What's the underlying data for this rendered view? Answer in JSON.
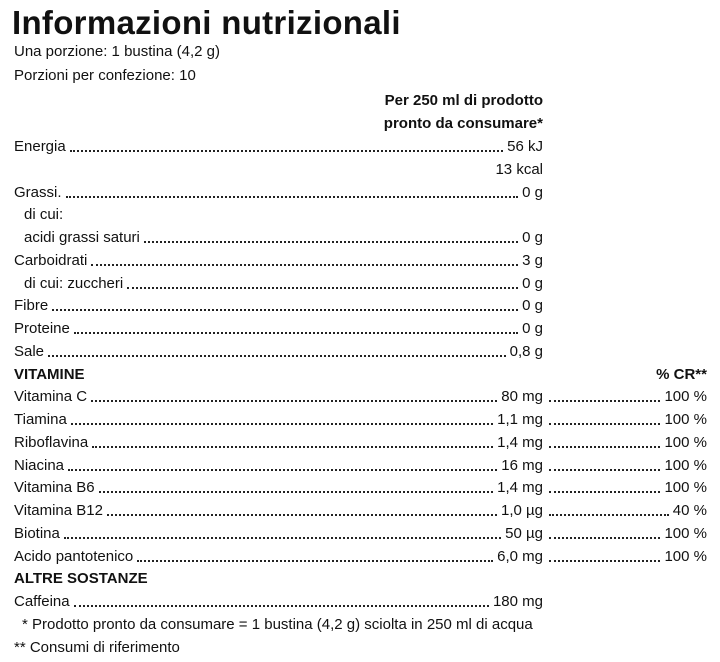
{
  "title": "Informazioni nutrizionali",
  "serving": [
    "Una porzione: 1 bustina (4,2 g)",
    "Porzioni per confezione: 10"
  ],
  "column_header": [
    "Per 250 ml di prodotto",
    "pronto da consumare*"
  ],
  "nutrients": [
    {
      "label": "Energia",
      "amounts": [
        "56 kJ",
        "13 kcal"
      ]
    },
    {
      "label": "Grassi.",
      "amounts": [
        "0 g"
      ]
    },
    {
      "label": "di cui:",
      "amounts": [],
      "indent": true
    },
    {
      "label": "acidi grassi saturi",
      "amounts": [
        "0 g"
      ],
      "indent": true
    },
    {
      "label": "Carboidrati",
      "amounts": [
        "3 g"
      ]
    },
    {
      "label": "di cui: zuccheri",
      "amounts": [
        "0 g"
      ],
      "indent": true
    },
    {
      "label": "Fibre",
      "amounts": [
        "0 g"
      ]
    },
    {
      "label": "Proteine",
      "amounts": [
        "0 g"
      ]
    },
    {
      "label": "Sale",
      "amounts": [
        "0,8 g"
      ]
    }
  ],
  "vitamins": {
    "heading": "VITAMINE",
    "cr_header": "% CR**",
    "items": [
      {
        "label": "Vitamina C",
        "amount": "80 mg",
        "cr": "100 %"
      },
      {
        "label": "Tiamina",
        "amount": "1,1 mg",
        "cr": "100 %"
      },
      {
        "label": "Riboflavina",
        "amount": "1,4 mg",
        "cr": "100 %"
      },
      {
        "label": "Niacina",
        "amount": "16 mg",
        "cr": "100 %"
      },
      {
        "label": "Vitamina B6",
        "amount": "1,4 mg",
        "cr": "100 %"
      },
      {
        "label": "Vitamina B12",
        "amount": "1,0 µg",
        "cr": "40 %"
      },
      {
        "label": "Biotina",
        "amount": "50 µg",
        "cr": "100 %"
      },
      {
        "label": "Acido pantotenico",
        "amount": "6,0 mg",
        "cr": "100 %"
      }
    ]
  },
  "other": {
    "heading": "ALTRE SOSTANZE",
    "items": [
      {
        "label": "Caffeina",
        "amount": "180 mg"
      }
    ]
  },
  "footnotes": [
    "* Prodotto pronto da consumare = 1 bustina (4,2 g) sciolta in 250 ml di acqua",
    "** Consumi di riferimento"
  ]
}
